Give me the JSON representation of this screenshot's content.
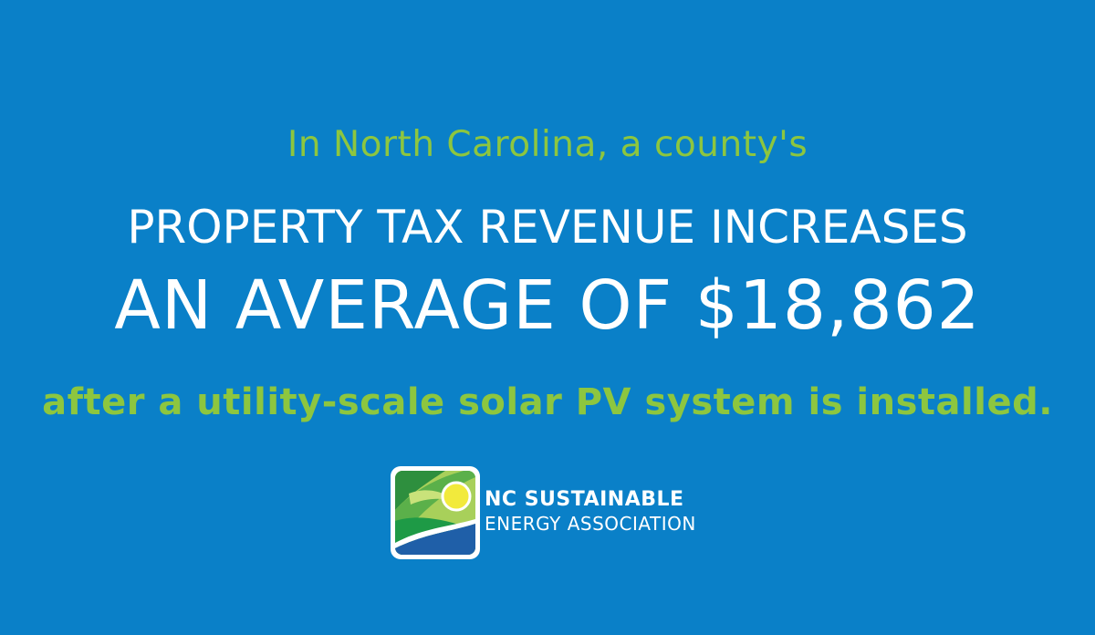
{
  "colors": {
    "background": "#0a80c8",
    "accent_green": "#8dc63f",
    "headline_white": "#ffffff"
  },
  "message": {
    "intro": "In North Carolina, a county's",
    "headline_line1": "PROPERTY TAX REVENUE INCREASES",
    "headline_line2": "AN AVERAGE OF $18,862",
    "outro": "after a utility-scale solar PV system is installed."
  },
  "logo": {
    "icon": "sun-over-hills-logo-icon",
    "name_line1": "NC SUSTAINABLE",
    "name_line2": "ENERGY ASSOCIATION"
  }
}
